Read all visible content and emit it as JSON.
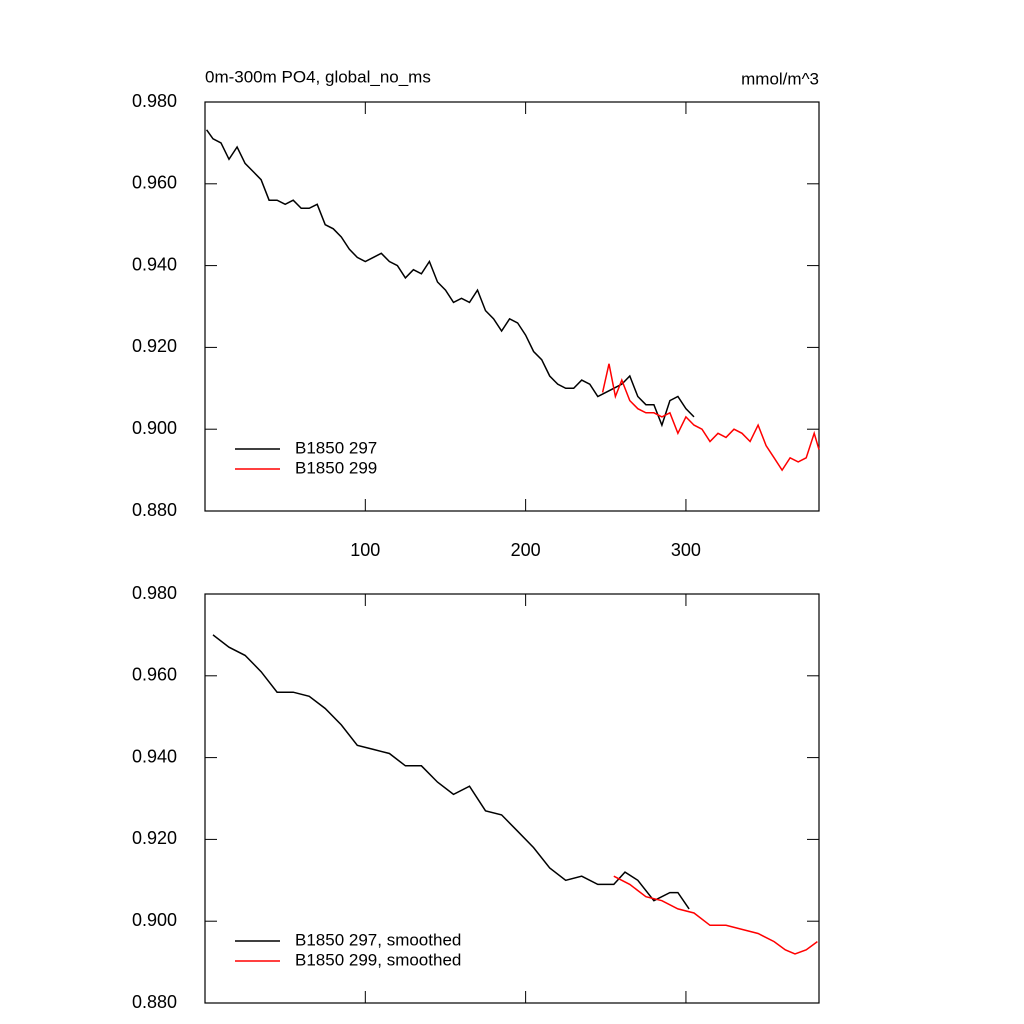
{
  "chart_data": [
    {
      "type": "line",
      "title": "0m-300m PO4, global_no_ms",
      "units": "mmol/m^3",
      "xlim": [
        0,
        383
      ],
      "xticks": [
        100,
        200,
        300
      ],
      "ylim": [
        0.88,
        0.98
      ],
      "yticks": [
        {
          "value": 0.88,
          "label": "0.880"
        },
        {
          "value": 0.9,
          "label": "0.900"
        },
        {
          "value": 0.92,
          "label": "0.920"
        },
        {
          "value": 0.94,
          "label": "0.940"
        },
        {
          "value": 0.96,
          "label": "0.960"
        },
        {
          "value": 0.98,
          "label": "0.980"
        }
      ],
      "legend": "lower left",
      "series": [
        {
          "name": "B1850 297",
          "color": "#000000",
          "x": [
            1,
            5,
            10,
            15,
            20,
            25,
            30,
            35,
            40,
            45,
            50,
            55,
            60,
            65,
            70,
            75,
            80,
            85,
            90,
            95,
            100,
            105,
            110,
            115,
            120,
            125,
            130,
            135,
            140,
            145,
            150,
            155,
            160,
            165,
            170,
            175,
            180,
            185,
            190,
            195,
            200,
            205,
            210,
            215,
            220,
            225,
            230,
            235,
            240,
            245,
            250,
            255,
            260,
            265,
            270,
            275,
            280,
            285,
            290,
            295,
            300,
            305
          ],
          "values": [
            0.9732,
            0.971,
            0.97,
            0.966,
            0.969,
            0.965,
            0.963,
            0.961,
            0.956,
            0.956,
            0.955,
            0.956,
            0.954,
            0.954,
            0.955,
            0.95,
            0.949,
            0.947,
            0.944,
            0.942,
            0.941,
            0.942,
            0.943,
            0.941,
            0.94,
            0.937,
            0.939,
            0.938,
            0.941,
            0.936,
            0.934,
            0.931,
            0.932,
            0.931,
            0.934,
            0.929,
            0.927,
            0.924,
            0.927,
            0.926,
            0.923,
            0.919,
            0.917,
            0.913,
            0.911,
            0.91,
            0.91,
            0.912,
            0.911,
            0.908,
            0.909,
            0.91,
            0.911,
            0.913,
            0.908,
            0.906,
            0.906,
            0.901,
            0.907,
            0.908,
            0.905,
            0.903
          ]
        },
        {
          "name": "B1850 299",
          "color": "#ff0000",
          "x": [
            248,
            252,
            256,
            260,
            265,
            270,
            275,
            280,
            285,
            290,
            295,
            300,
            305,
            310,
            315,
            320,
            325,
            330,
            335,
            340,
            345,
            350,
            355,
            360,
            365,
            370,
            375,
            380,
            383
          ],
          "values": [
            0.909,
            0.916,
            0.908,
            0.912,
            0.907,
            0.905,
            0.904,
            0.904,
            0.903,
            0.904,
            0.899,
            0.903,
            0.901,
            0.9,
            0.897,
            0.899,
            0.898,
            0.9,
            0.899,
            0.897,
            0.901,
            0.896,
            0.893,
            0.89,
            0.893,
            0.892,
            0.893,
            0.899,
            0.895
          ]
        }
      ]
    },
    {
      "type": "line",
      "xlim": [
        0,
        383
      ],
      "xticks": [
        100,
        200,
        300
      ],
      "ylim": [
        0.88,
        0.98
      ],
      "yticks": [
        {
          "value": 0.88,
          "label": "0.880"
        },
        {
          "value": 0.9,
          "label": "0.900"
        },
        {
          "value": 0.92,
          "label": "0.920"
        },
        {
          "value": 0.94,
          "label": "0.940"
        },
        {
          "value": 0.96,
          "label": "0.960"
        },
        {
          "value": 0.98,
          "label": "0.980"
        }
      ],
      "legend": "lower left",
      "series": [
        {
          "name": "B1850 297, smoothed",
          "color": "#000000",
          "x": [
            5,
            15,
            25,
            35,
            45,
            55,
            65,
            75,
            85,
            95,
            105,
            115,
            125,
            135,
            145,
            155,
            165,
            175,
            185,
            195,
            205,
            215,
            225,
            235,
            245,
            255,
            262,
            270,
            280,
            290,
            295,
            302
          ],
          "values": [
            0.97,
            0.967,
            0.965,
            0.961,
            0.956,
            0.956,
            0.955,
            0.952,
            0.948,
            0.943,
            0.942,
            0.941,
            0.938,
            0.938,
            0.934,
            0.931,
            0.933,
            0.927,
            0.926,
            0.922,
            0.918,
            0.913,
            0.91,
            0.911,
            0.909,
            0.909,
            0.912,
            0.91,
            0.905,
            0.907,
            0.907,
            0.903
          ]
        },
        {
          "name": "B1850 299, smoothed",
          "color": "#ff0000",
          "x": [
            255,
            265,
            275,
            285,
            295,
            305,
            315,
            325,
            335,
            345,
            355,
            362,
            368,
            375,
            382
          ],
          "values": [
            0.911,
            0.909,
            0.906,
            0.905,
            0.903,
            0.902,
            0.899,
            0.899,
            0.898,
            0.897,
            0.895,
            0.893,
            0.892,
            0.893,
            0.895
          ]
        }
      ]
    }
  ]
}
